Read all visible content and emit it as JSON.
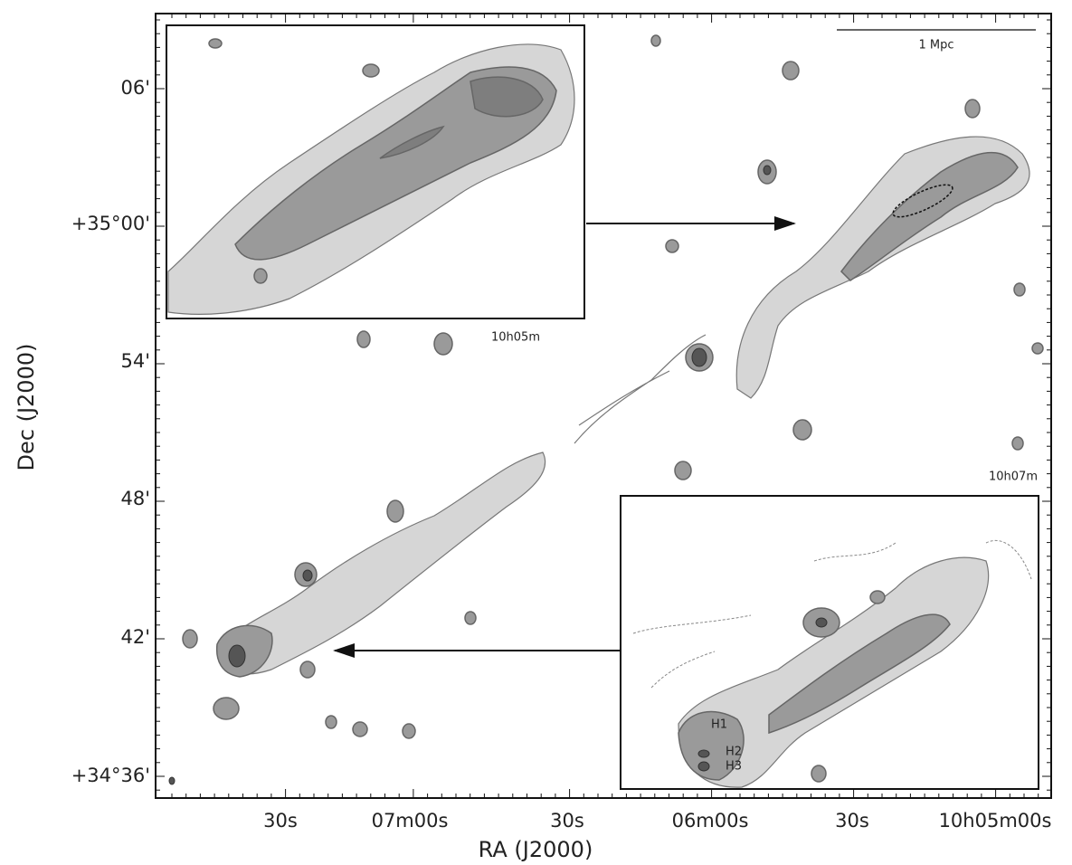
{
  "figure": {
    "x_label": "RA (J2000)",
    "y_label": "Dec (J2000)",
    "x_ticks": [
      "30s",
      "07m00s",
      "30s",
      "06m00s",
      "30s",
      "10h05m00s"
    ],
    "y_ticks": [
      "06'",
      "+35°00'",
      "54'",
      "48'",
      "42'",
      "+34°36'"
    ],
    "scale_bar": "1 Mpc",
    "top_inset_label": "10h05m",
    "bottom_inset_label": "10h07m",
    "hotspots": [
      "H1",
      "H2",
      "H3"
    ]
  }
}
